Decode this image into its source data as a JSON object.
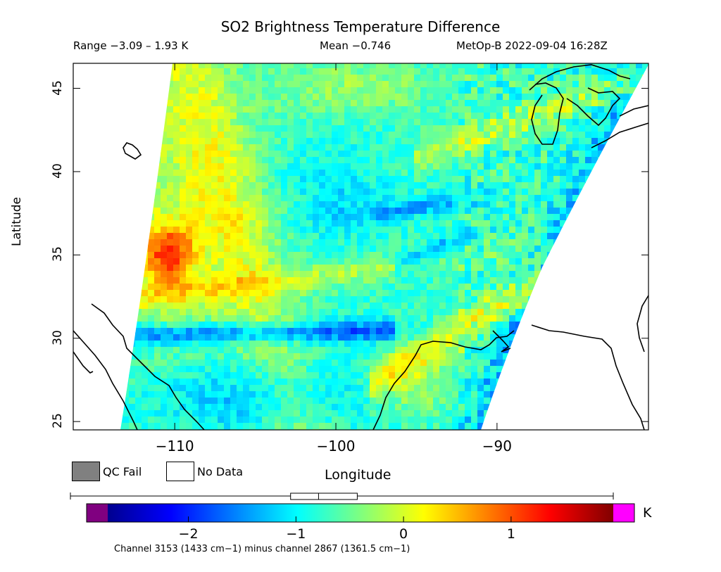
{
  "header": {
    "title": "SO2 Brightness Temperature Difference",
    "range": "Range −3.09 – 1.93 K",
    "mean": "Mean −0.746",
    "satellite_time": "MetOp-B 2022-09-04 16:28Z"
  },
  "map": {
    "ylabel": "Latitude",
    "xlabel": "Longitude",
    "lat_range": [
      24.5,
      46.5
    ],
    "lon_range": [
      -116.3,
      -80.6
    ],
    "lat_ticks": [
      "25",
      "30",
      "35",
      "40",
      "45"
    ],
    "lon_ticks": [
      "−110",
      "−100",
      "−90"
    ],
    "lat_tick_values": [
      25,
      30,
      35,
      40,
      45
    ],
    "lon_tick_values": [
      -110,
      -100,
      -90
    ]
  },
  "legend": {
    "qc_fail_label": "QC Fail",
    "no_data_label": "No Data",
    "qc_fail_color": "#808080",
    "no_data_color": "#ffffff"
  },
  "colorbar": {
    "unit": "K",
    "min": -2.75,
    "max": 1.95,
    "tick_labels": [
      "−2",
      "−1",
      "0",
      "1"
    ],
    "tick_values": [
      -2,
      -1,
      0,
      1
    ],
    "under_color": "#800080",
    "over_color": "#ff00ff",
    "stats_box": {
      "low": -1.05,
      "median": -0.79,
      "high": -0.43,
      "whisker_low": -3.09,
      "whisker_high": 1.93
    }
  },
  "footnote": "Channel 3153 (1433 cm−1) minus channel 2867 (1361.5 cm−1)"
}
